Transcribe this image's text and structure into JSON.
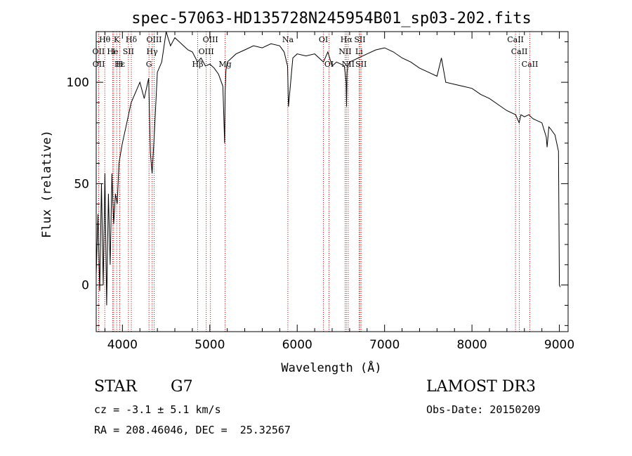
{
  "chart_data": {
    "type": "line",
    "title": "spec-57063-HD135728N245954B01_sp03-202.fits",
    "xlabel": "Wavelength (Å)",
    "ylabel": "Flux (relative)",
    "xlim": [
      3700,
      9100
    ],
    "ylim": [
      -23,
      125
    ],
    "xticks": [
      4000,
      5000,
      6000,
      7000,
      8000,
      9000
    ],
    "yticks": [
      0,
      50,
      100
    ],
    "line_color": "#000000",
    "marker_color": "#cc0000",
    "series": [
      {
        "values_x": [
          3700,
          3720,
          3740,
          3760,
          3780,
          3800,
          3820,
          3840,
          3860,
          3880,
          3900,
          3920,
          3940,
          3960,
          3980,
          4000,
          4050,
          4100,
          4150,
          4200,
          4250,
          4300,
          4320,
          4340,
          4360,
          4400,
          4450,
          4500,
          4550,
          4600,
          4650,
          4700,
          4750,
          4800,
          4860,
          4900,
          4950,
          5000,
          5050,
          5100,
          5150,
          5170,
          5175,
          5185,
          5200,
          5250,
          5300,
          5400,
          5500,
          5600,
          5700,
          5800,
          5850,
          5890,
          5900,
          5950,
          6000,
          6100,
          6200,
          6300,
          6350,
          6400,
          6450,
          6500,
          6540,
          6560,
          6565,
          6570,
          6580,
          6600,
          6650,
          6700,
          6750,
          6800,
          6900,
          7000,
          7100,
          7200,
          7300,
          7400,
          7500,
          7600,
          7650,
          7700,
          7800,
          7900,
          8000,
          8100,
          8200,
          8300,
          8400,
          8500,
          8540,
          8560,
          8600,
          8650,
          8700,
          8750,
          8800,
          8850,
          8860,
          8880,
          8900,
          8950,
          8990,
          9000,
          9010
        ],
        "values_y": [
          5,
          35,
          -3,
          50,
          0,
          55,
          -10,
          45,
          10,
          55,
          30,
          45,
          40,
          60,
          65,
          70,
          80,
          90,
          95,
          100,
          92,
          102,
          65,
          55,
          70,
          105,
          110,
          125,
          118,
          122,
          120,
          118,
          116,
          115,
          110,
          112,
          108,
          109,
          107,
          104,
          98,
          70,
          95,
          106,
          110,
          112,
          114,
          116,
          118,
          117,
          119,
          118,
          115,
          108,
          88,
          112,
          114,
          113,
          114,
          110,
          115,
          108,
          110,
          109,
          108,
          100,
          88,
          105,
          108,
          110,
          111,
          112,
          113,
          114,
          116,
          117,
          115,
          112,
          110,
          107,
          105,
          103,
          112,
          100,
          99,
          98,
          97,
          94,
          92,
          89,
          86,
          84,
          80,
          84,
          83,
          84,
          82,
          81,
          80,
          73,
          68,
          78,
          77,
          74,
          66,
          0,
          -1
        ]
      }
    ],
    "lines_row1": [
      {
        "label": "Hθ",
        "x": 3798
      },
      {
        "label": "K",
        "x": 3934
      },
      {
        "label": "Hδ",
        "x": 4102
      },
      {
        "label": "OIII",
        "x": 4363
      },
      {
        "label": "OIII",
        "x": 5007
      },
      {
        "label": "Na",
        "x": 5893
      },
      {
        "label": "OI",
        "x": 6300
      },
      {
        "label": "Hα",
        "x": 6563
      },
      {
        "label": "SII",
        "x": 6717
      },
      {
        "label": "CaII",
        "x": 8498
      }
    ],
    "lines_row2": [
      {
        "label": "OII",
        "x": 3727
      },
      {
        "label": "He",
        "x": 3888
      },
      {
        "label": "I",
        "x": 3900
      },
      {
        "label": "SII",
        "x": 4069
      },
      {
        "label": "Hγ",
        "x": 4340
      },
      {
        "label": "OIII",
        "x": 4959
      },
      {
        "label": "NII",
        "x": 6548
      },
      {
        "label": "Li",
        "x": 6708
      },
      {
        "label": "CaII",
        "x": 8542
      }
    ],
    "lines_row3": [
      {
        "label": "OII",
        "x": 3729
      },
      {
        "label": "Hε",
        "x": 3970
      },
      {
        "label": "H",
        "x": 3968
      },
      {
        "label": "G",
        "x": 4304
      },
      {
        "label": "Hβ",
        "x": 4861
      },
      {
        "label": "Mg",
        "x": 5175
      },
      {
        "label": "OI",
        "x": 6364
      },
      {
        "label": "NII",
        "x": 6583
      },
      {
        "label": "SII",
        "x": 6731
      },
      {
        "label": "CaII",
        "x": 8662
      }
    ]
  },
  "info": {
    "object_class": "STAR",
    "subclass": "G7",
    "survey": "LAMOST DR3",
    "redshift": "cz = -3.1 ± 5.1 km/s",
    "obs_date": "Obs-Date: 20150209",
    "coords": "RA = 208.46046, DEC =  25.32567"
  }
}
